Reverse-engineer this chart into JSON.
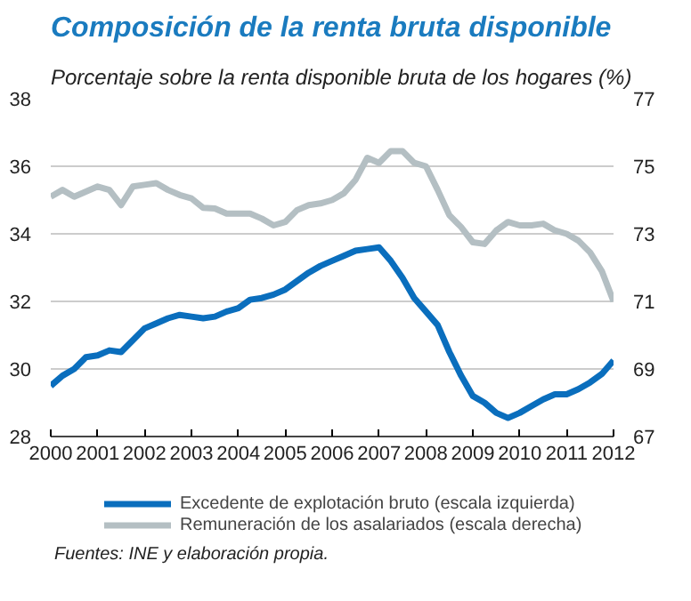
{
  "chart_data": {
    "type": "line",
    "title": "Composición de la renta bruta disponible",
    "subtitle": "Porcentaje sobre la renta disponible bruta de los hogares (%)",
    "x": [
      2000,
      2000.25,
      2000.5,
      2000.75,
      2001,
      2001.25,
      2001.5,
      2001.75,
      2002,
      2002.25,
      2002.5,
      2002.75,
      2003,
      2003.25,
      2003.5,
      2003.75,
      2004,
      2004.25,
      2004.5,
      2004.75,
      2005,
      2005.25,
      2005.5,
      2005.75,
      2006,
      2006.25,
      2006.5,
      2006.75,
      2007,
      2007.25,
      2007.5,
      2007.75,
      2008,
      2008.25,
      2008.5,
      2008.75,
      2009,
      2009.25,
      2009.5,
      2009.75,
      2010,
      2010.25,
      2010.5,
      2010.75,
      2011,
      2011.25,
      2011.5,
      2011.75,
      2012
    ],
    "series": [
      {
        "name": "Excedente de explotación bruto (escala izquierda)",
        "color": "#0a6ebd",
        "values": [
          29.5,
          29.8,
          30.0,
          30.35,
          30.4,
          30.55,
          30.5,
          30.85,
          31.2,
          31.35,
          31.5,
          31.6,
          31.55,
          31.5,
          31.55,
          31.7,
          31.8,
          32.05,
          32.1,
          32.2,
          32.35,
          32.6,
          32.85,
          33.05,
          33.2,
          33.35,
          33.5,
          33.55,
          33.6,
          33.2,
          32.7,
          32.1,
          31.7,
          31.3,
          30.5,
          29.8,
          29.2,
          29.0,
          28.7,
          28.55,
          28.7,
          28.9,
          29.1,
          29.25,
          29.25,
          29.4,
          29.6,
          29.85,
          30.25
        ]
      },
      {
        "name": "Remuneración de los asalariados (escala derecha)",
        "color": "#b4bfc3",
        "axis": "y2",
        "values": [
          74.1,
          74.3,
          74.1,
          74.25,
          74.4,
          74.3,
          73.85,
          74.4,
          74.45,
          74.5,
          74.3,
          74.15,
          74.05,
          73.77,
          73.75,
          73.6,
          73.6,
          73.6,
          73.45,
          73.25,
          73.35,
          73.7,
          73.85,
          73.9,
          74.0,
          74.2,
          74.6,
          75.25,
          75.1,
          75.45,
          75.45,
          75.1,
          75.0,
          74.3,
          73.55,
          73.2,
          72.75,
          72.7,
          73.1,
          73.35,
          73.25,
          73.25,
          73.3,
          73.1,
          73.0,
          72.8,
          72.45,
          71.9,
          71.0
        ]
      }
    ],
    "xlim": [
      2000,
      2012
    ],
    "xticks": [
      2000,
      2001,
      2002,
      2003,
      2004,
      2005,
      2006,
      2007,
      2008,
      2009,
      2010,
      2011,
      2012
    ],
    "ylim": [
      28,
      38
    ],
    "yticks": [
      28,
      30,
      32,
      34,
      36,
      38
    ],
    "y2lim": [
      67,
      77
    ],
    "y2ticks": [
      67,
      69,
      71,
      73,
      75,
      77
    ],
    "grid": "y",
    "legend": "bottom",
    "line_style": "solid",
    "marker": "none",
    "annotations": [
      "Fuentes: INE y elaboración propia."
    ]
  }
}
